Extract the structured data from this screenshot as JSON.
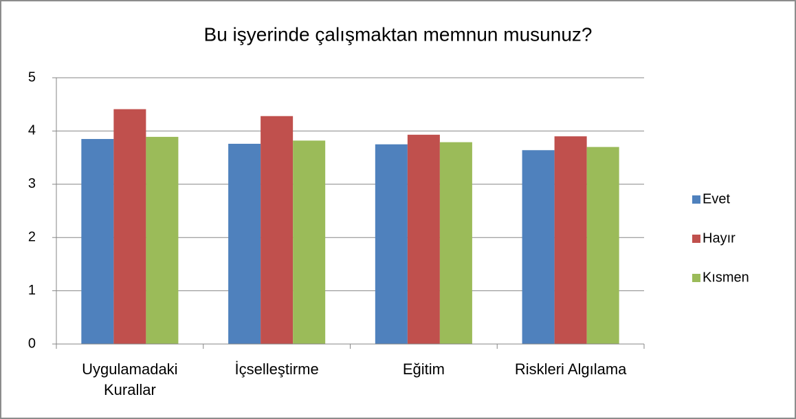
{
  "chart_data": {
    "type": "bar",
    "title": "Bu işyerinde çalışmaktan memnun musunuz?",
    "categories": [
      "Uygulamadaki Kurallar",
      "İçselleştirme",
      "Eğitim",
      "Riskleri Algılama"
    ],
    "series": [
      {
        "name": "Evet",
        "color": "#4f81bd",
        "values": [
          3.85,
          3.76,
          3.75,
          3.64
        ]
      },
      {
        "name": "Hayır",
        "color": "#c0504d",
        "values": [
          4.41,
          4.28,
          3.93,
          3.9
        ]
      },
      {
        "name": "Kısmen",
        "color": "#9bbb59",
        "values": [
          3.89,
          3.82,
          3.79,
          3.7
        ]
      }
    ],
    "ylim": [
      0,
      5
    ],
    "yticks": [
      0,
      1,
      2,
      3,
      4,
      5
    ],
    "grid": true,
    "legend": "right"
  }
}
